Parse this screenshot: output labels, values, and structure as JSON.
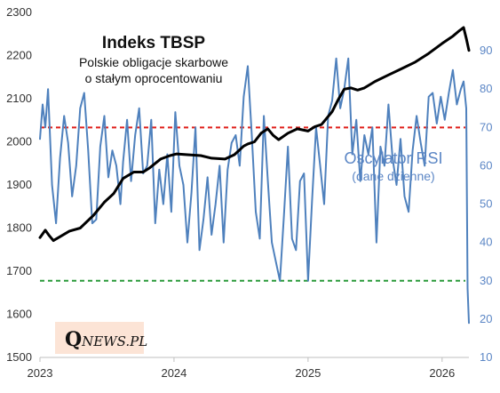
{
  "chart_data": {
    "type": "line",
    "title": "Indeks TBSP",
    "subtitle_line1": "Polskie obligacje skarbowe",
    "subtitle_line2": "o stałym oprocentowaniu",
    "rsi_title": "Oscylator RSI",
    "rsi_subtitle": "(dane dzienne)",
    "watermark": "QNEWS.PL",
    "x_ticks": [
      "2023",
      "2024",
      "2025",
      "2026"
    ],
    "xlim": [
      2023.0,
      2026.2
    ],
    "left_axis": {
      "ylim": [
        1500,
        2300
      ],
      "ticks": [
        1500,
        1600,
        1700,
        1800,
        1900,
        2000,
        2100,
        2200,
        2300
      ]
    },
    "right_axis": {
      "ylim": [
        10,
        100
      ],
      "ticks": [
        10,
        20,
        30,
        40,
        50,
        60,
        70,
        80,
        90
      ],
      "axis_top_y": 2300,
      "axis_bottom_y": 1500
    },
    "reference_lines": [
      {
        "axis": "right",
        "value": 70,
        "color": "#e0201b",
        "style": "dashed"
      },
      {
        "axis": "right",
        "value": 30,
        "color": "#2a9a3a",
        "style": "dashed"
      }
    ],
    "series": [
      {
        "axis": "left",
        "color": "#000000",
        "points": [
          [
            2023.0,
            1778
          ],
          [
            2023.04,
            1795
          ],
          [
            2023.07,
            1782
          ],
          [
            2023.1,
            1771
          ],
          [
            2023.15,
            1780
          ],
          [
            2023.22,
            1793
          ],
          [
            2023.3,
            1800
          ],
          [
            2023.4,
            1830
          ],
          [
            2023.48,
            1860
          ],
          [
            2023.55,
            1880
          ],
          [
            2023.62,
            1915
          ],
          [
            2023.7,
            1930
          ],
          [
            2023.77,
            1930
          ],
          [
            2023.82,
            1940
          ],
          [
            2023.9,
            1960
          ],
          [
            2023.97,
            1968
          ],
          [
            2024.02,
            1972
          ],
          [
            2024.1,
            1970
          ],
          [
            2024.2,
            1968
          ],
          [
            2024.28,
            1962
          ],
          [
            2024.38,
            1960
          ],
          [
            2024.45,
            1970
          ],
          [
            2024.52,
            1990
          ],
          [
            2024.55,
            1995
          ],
          [
            2024.6,
            2000
          ],
          [
            2024.65,
            2020
          ],
          [
            2024.7,
            2030
          ],
          [
            2024.74,
            2015
          ],
          [
            2024.78,
            2005
          ],
          [
            2024.85,
            2020
          ],
          [
            2024.92,
            2030
          ],
          [
            2025.0,
            2025
          ],
          [
            2025.05,
            2035
          ],
          [
            2025.1,
            2040
          ],
          [
            2025.18,
            2070
          ],
          [
            2025.22,
            2095
          ],
          [
            2025.27,
            2122
          ],
          [
            2025.32,
            2125
          ],
          [
            2025.37,
            2120
          ],
          [
            2025.42,
            2125
          ],
          [
            2025.5,
            2140
          ],
          [
            2025.6,
            2155
          ],
          [
            2025.7,
            2170
          ],
          [
            2025.8,
            2185
          ],
          [
            2025.9,
            2205
          ],
          [
            2026.0,
            2228
          ],
          [
            2026.08,
            2245
          ],
          [
            2026.13,
            2258
          ],
          [
            2026.16,
            2265
          ],
          [
            2026.18,
            2240
          ],
          [
            2026.2,
            2212
          ]
        ]
      },
      {
        "axis": "right",
        "color": "#4f81bd",
        "points": [
          [
            2023.0,
            67
          ],
          [
            2023.02,
            76
          ],
          [
            2023.04,
            70
          ],
          [
            2023.06,
            80
          ],
          [
            2023.09,
            55
          ],
          [
            2023.12,
            45
          ],
          [
            2023.15,
            62
          ],
          [
            2023.18,
            73
          ],
          [
            2023.21,
            66
          ],
          [
            2023.24,
            52
          ],
          [
            2023.27,
            60
          ],
          [
            2023.3,
            75
          ],
          [
            2023.33,
            79
          ],
          [
            2023.36,
            64
          ],
          [
            2023.39,
            45
          ],
          [
            2023.42,
            46
          ],
          [
            2023.45,
            65
          ],
          [
            2023.48,
            73
          ],
          [
            2023.51,
            57
          ],
          [
            2023.54,
            64
          ],
          [
            2023.57,
            60
          ],
          [
            2023.6,
            50
          ],
          [
            2023.62,
            61
          ],
          [
            2023.65,
            72
          ],
          [
            2023.68,
            56
          ],
          [
            2023.71,
            68
          ],
          [
            2023.74,
            75
          ],
          [
            2023.77,
            58
          ],
          [
            2023.8,
            60
          ],
          [
            2023.83,
            72
          ],
          [
            2023.86,
            45
          ],
          [
            2023.89,
            59
          ],
          [
            2023.92,
            50
          ],
          [
            2023.95,
            63
          ],
          [
            2023.98,
            48
          ],
          [
            2024.01,
            74
          ],
          [
            2024.04,
            60
          ],
          [
            2024.07,
            55
          ],
          [
            2024.1,
            40
          ],
          [
            2024.13,
            53
          ],
          [
            2024.16,
            70
          ],
          [
            2024.19,
            38
          ],
          [
            2024.22,
            46
          ],
          [
            2024.25,
            57
          ],
          [
            2024.28,
            42
          ],
          [
            2024.31,
            50
          ],
          [
            2024.34,
            60
          ],
          [
            2024.37,
            40
          ],
          [
            2024.4,
            59
          ],
          [
            2024.43,
            66
          ],
          [
            2024.46,
            68
          ],
          [
            2024.49,
            60
          ],
          [
            2024.52,
            78
          ],
          [
            2024.55,
            86
          ],
          [
            2024.58,
            68
          ],
          [
            2024.61,
            48
          ],
          [
            2024.64,
            41
          ],
          [
            2024.67,
            73
          ],
          [
            2024.7,
            56
          ],
          [
            2024.73,
            40
          ],
          [
            2024.76,
            35
          ],
          [
            2024.79,
            30
          ],
          [
            2024.82,
            47
          ],
          [
            2024.85,
            65
          ],
          [
            2024.88,
            41
          ],
          [
            2024.91,
            38
          ],
          [
            2024.94,
            56
          ],
          [
            2024.97,
            58
          ],
          [
            2025.0,
            30
          ],
          [
            2025.03,
            51
          ],
          [
            2025.06,
            70
          ],
          [
            2025.09,
            60
          ],
          [
            2025.12,
            50
          ],
          [
            2025.15,
            73
          ],
          [
            2025.18,
            77
          ],
          [
            2025.21,
            88
          ],
          [
            2025.24,
            75
          ],
          [
            2025.27,
            80
          ],
          [
            2025.3,
            88
          ],
          [
            2025.33,
            63
          ],
          [
            2025.36,
            72
          ],
          [
            2025.39,
            56
          ],
          [
            2025.42,
            68
          ],
          [
            2025.45,
            63
          ],
          [
            2025.48,
            70
          ],
          [
            2025.51,
            40
          ],
          [
            2025.54,
            65
          ],
          [
            2025.57,
            60
          ],
          [
            2025.6,
            76
          ],
          [
            2025.63,
            62
          ],
          [
            2025.66,
            55
          ],
          [
            2025.69,
            67
          ],
          [
            2025.72,
            52
          ],
          [
            2025.75,
            48
          ],
          [
            2025.78,
            64
          ],
          [
            2025.81,
            73
          ],
          [
            2025.84,
            66
          ],
          [
            2025.87,
            60
          ],
          [
            2025.9,
            78
          ],
          [
            2025.93,
            79
          ],
          [
            2025.96,
            71
          ],
          [
            2025.99,
            78
          ],
          [
            2026.02,
            72
          ],
          [
            2026.05,
            79
          ],
          [
            2026.08,
            85
          ],
          [
            2026.11,
            76
          ],
          [
            2026.14,
            80
          ],
          [
            2026.16,
            82
          ],
          [
            2026.18,
            75
          ],
          [
            2026.19,
            28
          ],
          [
            2026.2,
            19
          ]
        ]
      }
    ],
    "colors": {
      "tbsp": "#000000",
      "rsi": "#4f81bd",
      "overbought": "#e0201b",
      "oversold": "#2a9a3a",
      "watermark_bg": "#fce4d6"
    }
  }
}
